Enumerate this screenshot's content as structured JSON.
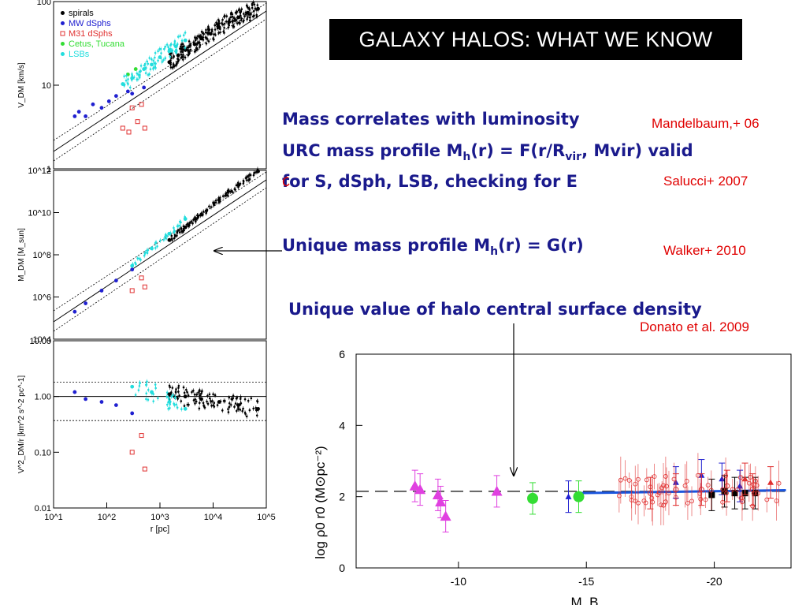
{
  "title": "GALAXY HALOS: WHAT WE KNOW",
  "statements": {
    "mass_luminosity": "Mass correlates with luminosity",
    "urc_line1_prefix": "URC mass profile  M",
    "urc_line1_sub1": "h",
    "urc_line1_mid": "(r) = F(r/R",
    "urc_line1_sub2": "vir",
    "urc_line1_suffix": ", Mvir) valid",
    "urc_line2": "for S, dSph, LSB, checking for E",
    "unique_prefix": "Unique mass profile M",
    "unique_sub": "h",
    "unique_suffix": "(r) = G(r)",
    "surface_density": "Unique value of halo central surface density"
  },
  "references": {
    "mandelbaum": "Mandelbaum,+ 06",
    "salucci": "Salucci+ 2007",
    "walker": "Walker+ 2010",
    "donato": "Donato et al. 2009"
  },
  "colors": {
    "statement": "#1a1a8c",
    "reference": "#e00000",
    "spirals": "#000000",
    "mw_dsphs": "#2020d0",
    "m31_dsphs": "#e03030",
    "cetus_tucana": "#33dd33",
    "lsbs": "#22dddd",
    "magenta": "#e040e0",
    "fit_line": "#1a55dd"
  },
  "chart_data": [
    {
      "type": "scatter",
      "panel": "V_DM vs r",
      "ylabel": "V_DM [km/s]",
      "yscale": "log",
      "ylim": [
        1,
        300
      ],
      "xscale": "log",
      "xlim": [
        10,
        100000
      ],
      "y_ticklabels": [
        "1",
        "10",
        "100"
      ],
      "legend_position": "top-left",
      "legend": [
        {
          "label": "spirals",
          "marker": "dot",
          "color": "#000000"
        },
        {
          "label": "MW dSphs",
          "marker": "dot",
          "color": "#2020d0"
        },
        {
          "label": "M31 dSphs",
          "marker": "square",
          "color": "#e03030"
        },
        {
          "label": "Cetus, Tucana",
          "marker": "dot",
          "color": "#33dd33"
        },
        {
          "label": "LSBs",
          "marker": "dot",
          "color": "#22dddd"
        }
      ],
      "series": [
        {
          "name": "spirals",
          "x": [
            1500,
            2200,
            3000,
            4500,
            6000,
            9000,
            13000,
            20000,
            30000,
            45000,
            70000
          ],
          "y": [
            38,
            48,
            58,
            70,
            85,
            100,
            125,
            150,
            175,
            205,
            235
          ]
        },
        {
          "name": "MW dSphs",
          "x": [
            25,
            30,
            40,
            55,
            80,
            110,
            150,
            250,
            300,
            500
          ],
          "y": [
            6,
            7,
            6,
            9,
            8,
            10,
            12,
            14,
            13,
            16
          ]
        },
        {
          "name": "M31 dSphs",
          "x": [
            200,
            260,
            300,
            380,
            450,
            520
          ],
          "y": [
            4,
            3.5,
            8,
            5,
            9,
            4
          ]
        },
        {
          "name": "Cetus, Tucana",
          "x": [
            250,
            350
          ],
          "y": [
            25,
            30
          ]
        },
        {
          "name": "LSBs",
          "x": [
            200,
            300,
            500,
            700,
            1000,
            1500,
            2000,
            3000
          ],
          "y": [
            18,
            22,
            30,
            35,
            45,
            55,
            65,
            80
          ]
        }
      ]
    },
    {
      "type": "scatter",
      "panel": "M_DM vs r",
      "ylabel": "M_DM [M_sun]",
      "yscale": "log",
      "ylim": [
        10000,
        1000000000000
      ],
      "xscale": "log",
      "xlim": [
        10,
        100000
      ],
      "y_ticklabels": [
        "10^4",
        "10^6",
        "10^8",
        "10^10",
        "10^12"
      ],
      "series": [
        {
          "name": "spirals",
          "x": [
            1500,
            3000,
            6000,
            13000,
            30000,
            70000
          ],
          "y": [
            500000000,
            2000000000,
            8000000000,
            40000000000,
            200000000000,
            900000000000
          ]
        },
        {
          "name": "MW dSphs",
          "x": [
            25,
            40,
            80,
            150,
            300
          ],
          "y": [
            200000,
            500000,
            2000000,
            6000000,
            20000000
          ]
        },
        {
          "name": "M31 dSphs",
          "x": [
            300,
            450,
            520
          ],
          "y": [
            2000000,
            8000000,
            3000000
          ]
        },
        {
          "name": "LSBs",
          "x": [
            300,
            700,
            1500,
            3000
          ],
          "y": [
            30000000,
            200000000,
            1000000000,
            5000000000
          ]
        }
      ]
    },
    {
      "type": "scatter",
      "panel": "V^2_DM/r vs r",
      "ylabel": "V^2_DM/r [km^2 s^-2 pc^-1]",
      "xlabel": "r [pc]",
      "yscale": "log",
      "ylim": [
        0.01,
        10
      ],
      "xscale": "log",
      "xlim": [
        10,
        100000
      ],
      "y_ticklabels": [
        "0.01",
        "0.10",
        "1.00",
        "10.00"
      ],
      "x_ticklabels": [
        "10^1",
        "10^2",
        "10^3",
        "10^4",
        "10^5"
      ],
      "series": [
        {
          "name": "spirals",
          "x": [
            1500,
            3000,
            6000,
            13000,
            30000,
            70000
          ],
          "y": [
            1.1,
            1.0,
            0.9,
            0.8,
            0.7,
            0.6
          ]
        },
        {
          "name": "MW dSphs",
          "x": [
            25,
            40,
            80,
            150,
            300
          ],
          "y": [
            1.2,
            0.9,
            0.8,
            0.7,
            0.5
          ]
        },
        {
          "name": "M31 dSphs",
          "x": [
            300,
            450,
            520
          ],
          "y": [
            0.1,
            0.2,
            0.05
          ]
        },
        {
          "name": "LSBs",
          "x": [
            300,
            700,
            1500,
            3000
          ],
          "y": [
            1.5,
            1.2,
            0.8,
            0.6
          ]
        }
      ]
    },
    {
      "type": "scatter",
      "panel": "log rho_0 r_0 vs M_B",
      "ylabel": "log ρ0 r0 (M⊙pc⁻²)",
      "xlabel": "M_B",
      "xlim": [
        -6,
        -23
      ],
      "ylim": [
        0,
        6
      ],
      "x_ticklabels": [
        "-10",
        "-15",
        "-20"
      ],
      "y_ticklabels": [
        "0",
        "2",
        "4",
        "6"
      ],
      "reference_line": 2.15,
      "series": [
        {
          "name": "magenta triangles",
          "x": [
            -8.3,
            -8.5,
            -9.3,
            -9.5,
            -9.2,
            -11.5
          ],
          "y": [
            2.3,
            2.2,
            1.85,
            1.45,
            2.05,
            2.15
          ]
        },
        {
          "name": "green circles",
          "x": [
            -12.9,
            -14.7
          ],
          "y": [
            1.95,
            2.0
          ]
        },
        {
          "name": "blue triangles",
          "x": [
            -14.3,
            -18.5,
            -19.5,
            -20.3,
            -21.0
          ],
          "y": [
            2.0,
            2.4,
            2.6,
            2.5,
            2.3
          ]
        },
        {
          "name": "red circles",
          "x": [
            -17.5,
            -18.5,
            -19.5,
            -20.5,
            -21.5
          ],
          "y": [
            2.1,
            2.2,
            2.2,
            2.3,
            2.2
          ]
        },
        {
          "name": "black squares",
          "x": [
            -19.9,
            -20.4,
            -20.8,
            -21.2,
            -21.6
          ],
          "y": [
            2.05,
            2.15,
            2.1,
            2.1,
            2.1
          ]
        },
        {
          "name": "red triangles",
          "x": [
            -21.2,
            -22.2
          ],
          "y": [
            2.5,
            2.4
          ]
        }
      ]
    }
  ]
}
